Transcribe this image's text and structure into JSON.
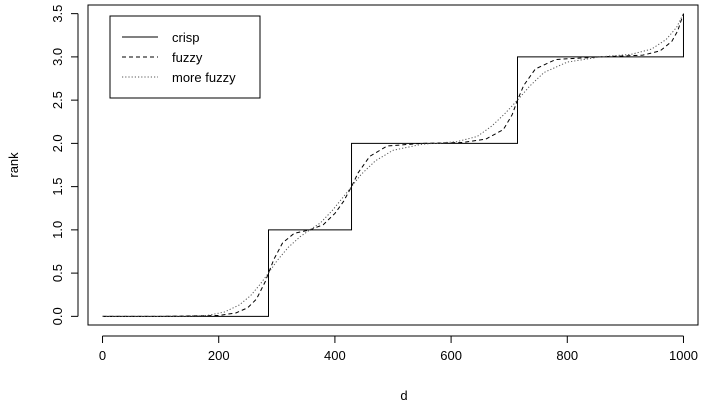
{
  "chart_data": {
    "type": "line",
    "title": "",
    "xlabel": "d",
    "ylabel": "rank",
    "xlim": [
      -25,
      1025
    ],
    "ylim": [
      -0.1,
      3.6
    ],
    "grid": false,
    "legend_position": "top-left",
    "x_ticks": [
      0,
      200,
      400,
      600,
      800,
      1000
    ],
    "x_tick_labels": [
      "0",
      "200",
      "400",
      "600",
      "800",
      "1000"
    ],
    "y_ticks": [
      0,
      0.5,
      1,
      1.5,
      2,
      2.5,
      3,
      3.5
    ],
    "y_tick_labels": [
      "0.0",
      "0.5",
      "1.0",
      "1.5",
      "2.0",
      "2.5",
      "3.0",
      "3.5"
    ],
    "series": [
      {
        "name": "crisp",
        "line_style": "solid",
        "color": "#000000",
        "x": [
          0,
          285.7,
          285.7,
          428.6,
          428.6,
          714.3,
          714.3,
          1000,
          1000
        ],
        "y": [
          0,
          0,
          1,
          1,
          2,
          2,
          3,
          3,
          3.5
        ]
      },
      {
        "name": "fuzzy",
        "line_style": "dashed",
        "color": "#000000",
        "x": [
          0,
          100,
          200,
          230,
          250,
          265,
          280,
          285.7,
          295,
          310,
          330,
          357,
          380,
          400,
          415,
          428.6,
          440,
          460,
          490,
          550,
          620,
          660,
          690,
          705,
          714.3,
          725,
          745,
          780,
          857,
          930,
          960,
          980,
          990,
          1000
        ],
        "y": [
          0,
          0,
          0.01,
          0.04,
          0.1,
          0.2,
          0.4,
          0.5,
          0.66,
          0.85,
          0.96,
          1.0,
          1.06,
          1.19,
          1.33,
          1.5,
          1.66,
          1.85,
          1.97,
          2.0,
          2.01,
          2.05,
          2.16,
          2.33,
          2.5,
          2.67,
          2.86,
          2.97,
          3.0,
          3.02,
          3.07,
          3.18,
          3.3,
          3.5
        ]
      },
      {
        "name": "more fuzzy",
        "line_style": "dotted",
        "color": "#555555",
        "x": [
          0,
          100,
          180,
          210,
          235,
          255,
          270,
          285.7,
          300,
          320,
          340,
          357,
          375,
          395,
          412,
          428.6,
          445,
          470,
          500,
          550,
          610,
          645,
          670,
          692,
          714.3,
          735,
          760,
          800,
          857,
          910,
          945,
          970,
          988,
          1000
        ],
        "y": [
          0,
          0,
          0.01,
          0.05,
          0.13,
          0.24,
          0.36,
          0.5,
          0.64,
          0.8,
          0.92,
          1.0,
          1.08,
          1.22,
          1.36,
          1.5,
          1.64,
          1.8,
          1.92,
          1.99,
          2.02,
          2.08,
          2.2,
          2.34,
          2.5,
          2.66,
          2.82,
          2.94,
          3.0,
          3.03,
          3.09,
          3.2,
          3.34,
          3.5
        ]
      }
    ]
  }
}
